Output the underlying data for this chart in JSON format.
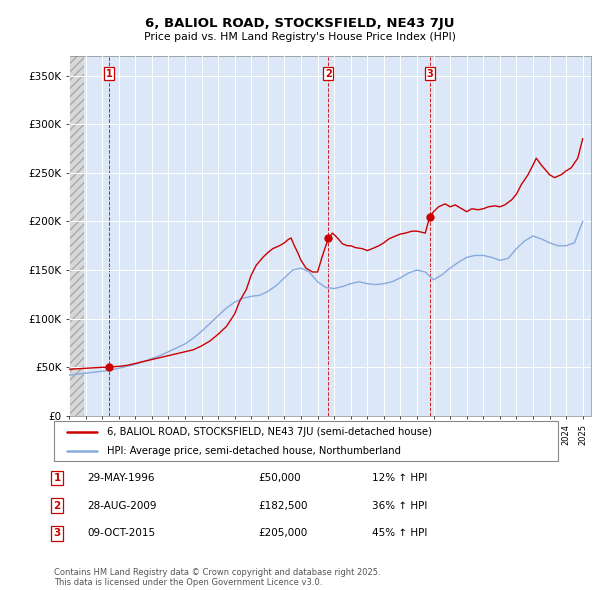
{
  "title": "6, BALIOL ROAD, STOCKSFIELD, NE43 7JU",
  "subtitle": "Price paid vs. HM Land Registry's House Price Index (HPI)",
  "ylabel_ticks": [
    "£0",
    "£50K",
    "£100K",
    "£150K",
    "£200K",
    "£250K",
    "£300K",
    "£350K"
  ],
  "ytick_values": [
    0,
    50000,
    100000,
    150000,
    200000,
    250000,
    300000,
    350000
  ],
  "ylim": [
    0,
    370000
  ],
  "xlim_start": 1994,
  "xlim_end": 2025.5,
  "transactions": [
    {
      "label": "1",
      "date": 1996.41,
      "price": 50000
    },
    {
      "label": "2",
      "date": 2009.65,
      "price": 182500
    },
    {
      "label": "3",
      "date": 2015.77,
      "price": 205000
    }
  ],
  "transaction_table": [
    {
      "num": "1",
      "date": "29-MAY-1996",
      "price": "£50,000",
      "hpi": "12% ↑ HPI"
    },
    {
      "num": "2",
      "date": "28-AUG-2009",
      "price": "£182,500",
      "hpi": "36% ↑ HPI"
    },
    {
      "num": "3",
      "date": "09-OCT-2015",
      "price": "£205,000",
      "hpi": "45% ↑ HPI"
    }
  ],
  "legend_line1": "6, BALIOL ROAD, STOCKSFIELD, NE43 7JU (semi-detached house)",
  "legend_line2": "HPI: Average price, semi-detached house, Northumberland",
  "footnote": "Contains HM Land Registry data © Crown copyright and database right 2025.\nThis data is licensed under the Open Government Licence v3.0.",
  "line_color_red": "#cc0000",
  "line_color_blue": "#88aadd",
  "vline_color": "#cc0000",
  "grid_color": "#d0d8e8",
  "bg_color": "#dce8f8",
  "hpi_x": [
    1994.0,
    1994.5,
    1995.0,
    1995.5,
    1996.0,
    1996.5,
    1997.0,
    1997.5,
    1998.0,
    1998.5,
    1999.0,
    1999.5,
    2000.0,
    2000.5,
    2001.0,
    2001.5,
    2002.0,
    2002.5,
    2003.0,
    2003.5,
    2004.0,
    2004.5,
    2005.0,
    2005.5,
    2006.0,
    2006.5,
    2007.0,
    2007.5,
    2008.0,
    2008.5,
    2009.0,
    2009.5,
    2010.0,
    2010.5,
    2011.0,
    2011.5,
    2012.0,
    2012.5,
    2013.0,
    2013.5,
    2014.0,
    2014.5,
    2015.0,
    2015.5,
    2016.0,
    2016.5,
    2017.0,
    2017.5,
    2018.0,
    2018.5,
    2019.0,
    2019.5,
    2020.0,
    2020.5,
    2021.0,
    2021.5,
    2022.0,
    2022.5,
    2023.0,
    2023.5,
    2024.0,
    2024.5,
    2025.0
  ],
  "hpi_y": [
    42000,
    43000,
    44000,
    45000,
    46000,
    47000,
    49000,
    51000,
    53000,
    56000,
    59000,
    62000,
    66000,
    70000,
    74000,
    80000,
    87000,
    95000,
    103000,
    111000,
    117000,
    121000,
    123000,
    124000,
    128000,
    134000,
    142000,
    150000,
    152000,
    148000,
    138000,
    132000,
    131000,
    133000,
    136000,
    138000,
    136000,
    135000,
    136000,
    138000,
    142000,
    147000,
    150000,
    148000,
    140000,
    145000,
    152000,
    158000,
    163000,
    165000,
    165000,
    163000,
    160000,
    162000,
    172000,
    180000,
    185000,
    182000,
    178000,
    175000,
    175000,
    178000,
    200000
  ],
  "price_paid_x": [
    1994.0,
    1994.5,
    1995.0,
    1995.5,
    1996.0,
    1996.41,
    1996.6,
    1997.0,
    1997.5,
    1998.0,
    1998.5,
    1999.0,
    1999.5,
    2000.0,
    2000.5,
    2001.0,
    2001.5,
    2002.0,
    2002.5,
    2003.0,
    2003.5,
    2004.0,
    2004.3,
    2004.7,
    2005.0,
    2005.3,
    2005.7,
    2006.0,
    2006.3,
    2006.7,
    2007.0,
    2007.2,
    2007.4,
    2007.6,
    2007.8,
    2008.0,
    2008.3,
    2008.7,
    2009.0,
    2009.3,
    2009.65,
    2009.9,
    2010.2,
    2010.5,
    2010.8,
    2011.0,
    2011.3,
    2011.7,
    2012.0,
    2012.3,
    2012.7,
    2013.0,
    2013.3,
    2013.7,
    2014.0,
    2014.3,
    2014.7,
    2015.0,
    2015.5,
    2015.77,
    2016.0,
    2016.3,
    2016.7,
    2017.0,
    2017.3,
    2017.7,
    2018.0,
    2018.3,
    2018.7,
    2019.0,
    2019.3,
    2019.7,
    2020.0,
    2020.3,
    2020.7,
    2021.0,
    2021.3,
    2021.7,
    2022.0,
    2022.2,
    2022.5,
    2022.8,
    2023.0,
    2023.3,
    2023.7,
    2024.0,
    2024.3,
    2024.7,
    2025.0
  ],
  "price_paid_y": [
    48000,
    48500,
    49000,
    49500,
    50000,
    50000,
    50500,
    51000,
    52000,
    54000,
    56000,
    58000,
    60000,
    62000,
    64000,
    66000,
    68000,
    72000,
    77000,
    84000,
    92000,
    105000,
    118000,
    130000,
    145000,
    155000,
    163000,
    168000,
    172000,
    175000,
    178000,
    181000,
    183000,
    175000,
    168000,
    160000,
    152000,
    148000,
    148000,
    165000,
    182500,
    188000,
    183000,
    177000,
    175000,
    175000,
    173000,
    172000,
    170000,
    172000,
    175000,
    178000,
    182000,
    185000,
    187000,
    188000,
    190000,
    190000,
    188000,
    205000,
    210000,
    215000,
    218000,
    215000,
    217000,
    213000,
    210000,
    213000,
    212000,
    213000,
    215000,
    216000,
    215000,
    217000,
    222000,
    228000,
    238000,
    248000,
    258000,
    265000,
    258000,
    252000,
    248000,
    245000,
    248000,
    252000,
    255000,
    265000,
    285000
  ]
}
